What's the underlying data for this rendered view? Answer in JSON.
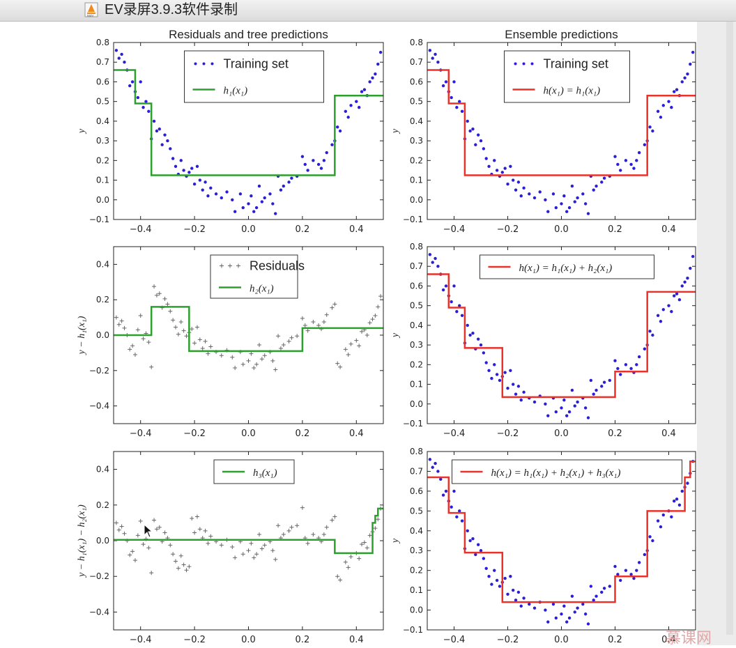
{
  "window": {
    "title": "EV录屏3.9.3软件录制",
    "app_icon": "m4v-file-icon"
  },
  "watermark": "慕课网",
  "colors": {
    "points": "#2b1fd6",
    "green": "#2ca02c",
    "red": "#e8322a",
    "residual": "#666666",
    "axes": "#222222"
  },
  "chart_data": [
    {
      "type": "scatter",
      "title": "Residuals and tree predictions",
      "ylabel": "y",
      "xlim": [
        -0.5,
        0.5
      ],
      "ylim": [
        -0.1,
        0.8
      ],
      "xticks": [
        "−0.4",
        "−0.2",
        "0.0",
        "0.2",
        "0.4"
      ],
      "yticks": [
        "−0.1",
        "0.0",
        "0.1",
        "0.2",
        "0.3",
        "0.4",
        "0.5",
        "0.6",
        "0.7",
        "0.8"
      ],
      "yticks_values": [
        -0.1,
        0,
        0.1,
        0.2,
        0.3,
        0.4,
        0.5,
        0.6,
        0.7,
        0.8
      ],
      "points": "training",
      "legend": {
        "location": "upper center",
        "entries": [
          {
            "label": "Training set",
            "kind": "dots"
          },
          {
            "label": "h₁(x₁)",
            "kind": "green-line"
          }
        ]
      },
      "step": {
        "edges": [
          -0.5,
          -0.42,
          -0.36,
          0.32,
          0.5
        ],
        "values": [
          0.66,
          0.49,
          0.125,
          0.53
        ],
        "color": "green"
      }
    },
    {
      "type": "scatter",
      "title": "Ensemble predictions",
      "ylabel": "y",
      "xlim": [
        -0.5,
        0.5
      ],
      "ylim": [
        -0.1,
        0.8
      ],
      "xticks": [
        "−0.4",
        "−0.2",
        "0.0",
        "0.2",
        "0.4"
      ],
      "yticks": [
        "−0.1",
        "0.0",
        "0.1",
        "0.2",
        "0.3",
        "0.4",
        "0.5",
        "0.6",
        "0.7",
        "0.8"
      ],
      "yticks_values": [
        -0.1,
        0,
        0.1,
        0.2,
        0.3,
        0.4,
        0.5,
        0.6,
        0.7,
        0.8
      ],
      "points": "training",
      "legend": {
        "location": "upper center",
        "entries": [
          {
            "label": "Training set",
            "kind": "dots"
          },
          {
            "label": "h(x₁) = h₁(x₁)",
            "kind": "red-line"
          }
        ]
      },
      "step": {
        "edges": [
          -0.5,
          -0.42,
          -0.36,
          0.32,
          0.5
        ],
        "values": [
          0.66,
          0.49,
          0.125,
          0.53
        ],
        "color": "red"
      }
    },
    {
      "type": "scatter",
      "title": "",
      "ylabel": "y − h₁(x₁)",
      "xlim": [
        -0.5,
        0.5
      ],
      "ylim": [
        -0.5,
        0.5
      ],
      "xticks": [
        "−0.4",
        "−0.2",
        "0.0",
        "0.2",
        "0.4"
      ],
      "yticks": [
        "−0.4",
        "−0.2",
        "0.0",
        "0.2",
        "0.4"
      ],
      "yticks_values": [
        -0.4,
        -0.2,
        0,
        0.2,
        0.4
      ],
      "points": "residual1",
      "legend": {
        "location": "upper center",
        "entries": [
          {
            "label": "Residuals",
            "kind": "plus"
          },
          {
            "label": "h₂(x₁)",
            "kind": "green-line"
          }
        ]
      },
      "step": {
        "edges": [
          -0.5,
          -0.36,
          -0.22,
          0.2,
          0.5
        ],
        "values": [
          0.0,
          0.16,
          -0.09,
          0.04
        ],
        "color": "green"
      }
    },
    {
      "type": "scatter",
      "title": "",
      "ylabel": "y",
      "xlim": [
        -0.5,
        0.5
      ],
      "ylim": [
        -0.1,
        0.8
      ],
      "xticks": [
        "−0.4",
        "−0.2",
        "0.0",
        "0.2",
        "0.4"
      ],
      "yticks": [
        "−0.1",
        "0.0",
        "0.1",
        "0.2",
        "0.3",
        "0.4",
        "0.5",
        "0.6",
        "0.7",
        "0.8"
      ],
      "yticks_values": [
        -0.1,
        0,
        0.1,
        0.2,
        0.3,
        0.4,
        0.5,
        0.6,
        0.7,
        0.8
      ],
      "points": "training",
      "legend": {
        "location": "upper center",
        "entries": [
          {
            "label": "h(x₁) = h₁(x₁) + h₂(x₁)",
            "kind": "red-line"
          }
        ]
      },
      "step": {
        "edges": [
          -0.5,
          -0.42,
          -0.36,
          -0.22,
          0.2,
          0.32,
          0.5
        ],
        "values": [
          0.66,
          0.49,
          0.285,
          0.035,
          0.165,
          0.57
        ],
        "color": "red"
      }
    },
    {
      "type": "scatter",
      "title": "",
      "ylabel": "y − h₁(x₁) − h₂(x₁)",
      "xlim": [
        -0.5,
        0.5
      ],
      "ylim": [
        -0.5,
        0.5
      ],
      "xticks": [
        "−0.4",
        "−0.2",
        "0.0",
        "0.2",
        "0.4"
      ],
      "yticks": [
        "−0.4",
        "−0.2",
        "0.0",
        "0.2",
        "0.4"
      ],
      "yticks_values": [
        -0.4,
        -0.2,
        0,
        0.2,
        0.4
      ],
      "points": "residual2",
      "legend": {
        "location": "upper center",
        "entries": [
          {
            "label": "h₃(x₁)",
            "kind": "green-line"
          }
        ]
      },
      "step": {
        "edges": [
          -0.5,
          0.32,
          0.46,
          0.47,
          0.48,
          0.5
        ],
        "values": [
          0.005,
          -0.07,
          0.1,
          0.14,
          0.18
        ],
        "color": "green"
      }
    },
    {
      "type": "scatter",
      "title": "",
      "ylabel": "y",
      "xlim": [
        -0.5,
        0.5
      ],
      "ylim": [
        -0.1,
        0.8
      ],
      "xticks": [
        "−0.4",
        "−0.2",
        "0.0",
        "0.2",
        "0.4"
      ],
      "yticks": [
        "−0.1",
        "0.0",
        "0.1",
        "0.2",
        "0.3",
        "0.4",
        "0.5",
        "0.6",
        "0.7",
        "0.8"
      ],
      "yticks_values": [
        -0.1,
        0,
        0.1,
        0.2,
        0.3,
        0.4,
        0.5,
        0.6,
        0.7,
        0.8
      ],
      "points": "training",
      "legend": {
        "location": "upper center",
        "entries": [
          {
            "label": "h(x₁) = h₁(x₁) + h₂(x₁) + h₃(x₁)",
            "kind": "red-line"
          }
        ]
      },
      "step": {
        "edges": [
          -0.5,
          -0.42,
          -0.36,
          -0.22,
          0.2,
          0.32,
          0.46,
          0.48,
          0.5
        ],
        "values": [
          0.67,
          0.49,
          0.29,
          0.04,
          0.17,
          0.5,
          0.67,
          0.75
        ],
        "color": "red"
      }
    }
  ],
  "training_points": [
    [
      -0.49,
      0.76
    ],
    [
      -0.48,
      0.72
    ],
    [
      -0.47,
      0.74
    ],
    [
      -0.46,
      0.7
    ],
    [
      -0.45,
      0.66
    ],
    [
      -0.44,
      0.58
    ],
    [
      -0.43,
      0.6
    ],
    [
      -0.42,
      0.55
    ],
    [
      -0.41,
      0.52
    ],
    [
      -0.4,
      0.6
    ],
    [
      -0.39,
      0.47
    ],
    [
      -0.38,
      0.5
    ],
    [
      -0.37,
      0.45
    ],
    [
      -0.36,
      0.31
    ],
    [
      -0.35,
      0.4
    ],
    [
      -0.34,
      0.35
    ],
    [
      -0.33,
      0.36
    ],
    [
      -0.32,
      0.28
    ],
    [
      -0.31,
      0.33
    ],
    [
      -0.3,
      0.3
    ],
    [
      -0.29,
      0.26
    ],
    [
      -0.28,
      0.21
    ],
    [
      -0.27,
      0.17
    ],
    [
      -0.26,
      0.13
    ],
    [
      -0.25,
      0.2
    ],
    [
      -0.24,
      0.15
    ],
    [
      -0.23,
      0.12
    ],
    [
      -0.22,
      0.14
    ],
    [
      -0.21,
      0.16
    ],
    [
      -0.2,
      0.08
    ],
    [
      -0.19,
      0.17
    ],
    [
      -0.18,
      0.1
    ],
    [
      -0.17,
      0.05
    ],
    [
      -0.16,
      0.09
    ],
    [
      -0.15,
      0.02
    ],
    [
      -0.14,
      0.06
    ],
    [
      -0.12,
      0.03
    ],
    [
      -0.1,
      0.01
    ],
    [
      -0.08,
      0.04
    ],
    [
      -0.06,
      0.0
    ],
    [
      -0.05,
      -0.06
    ],
    [
      -0.03,
      0.03
    ],
    [
      -0.02,
      -0.04
    ],
    [
      0.0,
      -0.02
    ],
    [
      0.01,
      0.02
    ],
    [
      0.02,
      -0.06
    ],
    [
      0.03,
      -0.04
    ],
    [
      0.04,
      0.07
    ],
    [
      0.05,
      -0.01
    ],
    [
      0.06,
      0.01
    ],
    [
      0.08,
      0.03
    ],
    [
      0.09,
      -0.02
    ],
    [
      0.1,
      -0.07
    ],
    [
      0.11,
      0.12
    ],
    [
      0.12,
      0.05
    ],
    [
      0.13,
      0.07
    ],
    [
      0.15,
      0.09
    ],
    [
      0.16,
      0.11
    ],
    [
      0.18,
      0.12
    ],
    [
      0.2,
      0.22
    ],
    [
      0.21,
      0.18
    ],
    [
      0.22,
      0.15
    ],
    [
      0.24,
      0.2
    ],
    [
      0.26,
      0.18
    ],
    [
      0.27,
      0.16
    ],
    [
      0.28,
      0.2
    ],
    [
      0.29,
      0.24
    ],
    [
      0.31,
      0.28
    ],
    [
      0.32,
      0.3
    ],
    [
      0.33,
      0.37
    ],
    [
      0.34,
      0.35
    ],
    [
      0.36,
      0.45
    ],
    [
      0.37,
      0.42
    ],
    [
      0.38,
      0.48
    ],
    [
      0.4,
      0.5
    ],
    [
      0.41,
      0.47
    ],
    [
      0.42,
      0.55
    ],
    [
      0.43,
      0.56
    ],
    [
      0.44,
      0.53
    ],
    [
      0.45,
      0.6
    ],
    [
      0.46,
      0.62
    ],
    [
      0.47,
      0.64
    ],
    [
      0.48,
      0.69
    ],
    [
      0.49,
      0.75
    ]
  ]
}
